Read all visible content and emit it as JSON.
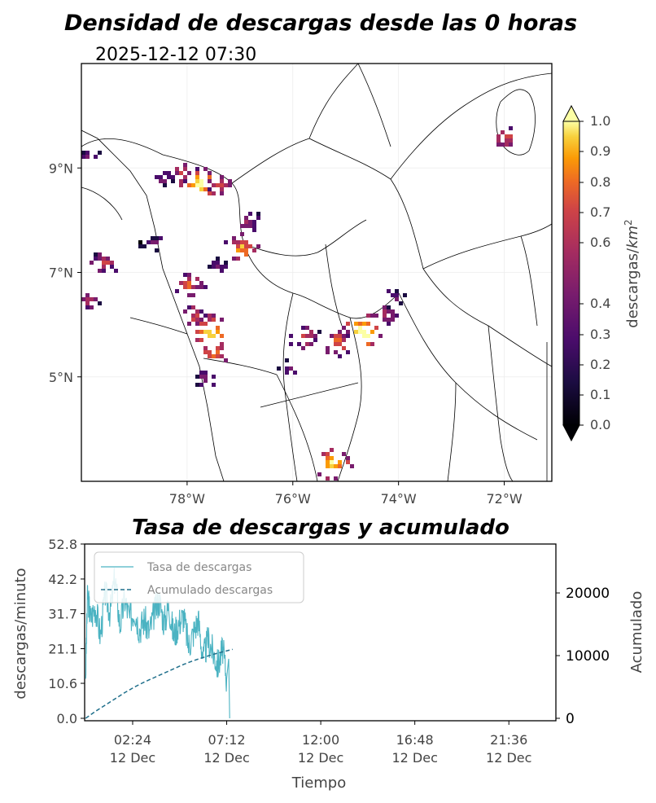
{
  "colors": {
    "rate_line": "#4bb3c2",
    "cumulative_line": "#1f6f8b",
    "border": "#000000",
    "map_bg": "#ffffff"
  },
  "chart_data": [
    {
      "type": "heatmap",
      "title": "Densidad de descargas desde las 0 horas",
      "subtitle": "2025-12-12 07:30",
      "xlim": [
        -80,
        -71.1
      ],
      "ylim": [
        3.0,
        11.0
      ],
      "xticks": [
        -78,
        -76,
        -74,
        -72
      ],
      "xtick_labels": [
        "78°W",
        "76°W",
        "74°W",
        "72°W"
      ],
      "yticks": [
        5,
        7,
        9
      ],
      "ytick_labels": [
        "5°N",
        "7°N",
        "9°N"
      ],
      "grid": true,
      "colorbar": {
        "label": "descargas/km²",
        "label_text": "descargas/",
        "label_italic": "km",
        "label_sup": "2",
        "ticks": [
          0.0,
          0.1,
          0.2,
          0.3,
          0.4,
          0.6,
          0.7,
          0.8,
          0.9,
          1.0
        ],
        "tick_labels": [
          "0.0",
          "0.1",
          "0.2",
          "0.3",
          "0.4",
          "0.6",
          "0.7",
          "0.8",
          "0.9",
          "1.0"
        ],
        "colormap": "inferno",
        "extend": "both"
      },
      "clusters": [
        {
          "lon": -78.5,
          "lat": 8.85,
          "density": 0.35
        },
        {
          "lon": -78.1,
          "lat": 8.95,
          "density": 0.55
        },
        {
          "lon": -77.8,
          "lat": 8.75,
          "density": 0.9
        },
        {
          "lon": -77.4,
          "lat": 8.7,
          "density": 0.6
        },
        {
          "lon": -76.9,
          "lat": 8.0,
          "density": 0.4
        },
        {
          "lon": -77.0,
          "lat": 7.5,
          "density": 0.75
        },
        {
          "lon": -77.4,
          "lat": 7.2,
          "density": 0.3
        },
        {
          "lon": -78.0,
          "lat": 6.8,
          "density": 0.6
        },
        {
          "lon": -77.9,
          "lat": 6.2,
          "density": 0.55
        },
        {
          "lon": -77.6,
          "lat": 5.9,
          "density": 0.95
        },
        {
          "lon": -77.5,
          "lat": 5.5,
          "density": 0.7
        },
        {
          "lon": -77.7,
          "lat": 5.0,
          "density": 0.3
        },
        {
          "lon": -79.9,
          "lat": 6.5,
          "density": 0.45
        },
        {
          "lon": -79.6,
          "lat": 7.2,
          "density": 0.5
        },
        {
          "lon": -78.7,
          "lat": 7.6,
          "density": 0.3
        },
        {
          "lon": -75.8,
          "lat": 5.8,
          "density": 0.5
        },
        {
          "lon": -75.2,
          "lat": 5.7,
          "density": 0.65
        },
        {
          "lon": -74.7,
          "lat": 5.9,
          "density": 1.0
        },
        {
          "lon": -74.3,
          "lat": 6.2,
          "density": 0.45
        },
        {
          "lon": -74.1,
          "lat": 6.6,
          "density": 0.3
        },
        {
          "lon": -75.3,
          "lat": 3.4,
          "density": 0.9
        },
        {
          "lon": -72.0,
          "lat": 9.6,
          "density": 0.55
        },
        {
          "lon": -79.9,
          "lat": 9.3,
          "density": 0.3
        },
        {
          "lon": -76.1,
          "lat": 5.2,
          "density": 0.3
        }
      ]
    },
    {
      "type": "line",
      "title": "Tasa de descargas y acumulado",
      "xlabel": "Tiempo",
      "ylabel": "descargas/minuto",
      "ylabel_right": "Acumulado",
      "x_range_hours": [
        0,
        24
      ],
      "xticks_hours": [
        2.4,
        7.2,
        12.0,
        16.8,
        21.6
      ],
      "xtick_labels": [
        "02:24\n12 Dec",
        "07:12\n12 Dec",
        "12:00\n12 Dec",
        "16:48\n12 Dec",
        "21:36\n12 Dec"
      ],
      "ylim": [
        0,
        52.8
      ],
      "yticks": [
        0.0,
        10.6,
        21.1,
        31.7,
        42.2,
        52.8
      ],
      "ytick_labels": [
        "0.0",
        "10.6",
        "21.1",
        "31.7",
        "42.2",
        "52.8"
      ],
      "ylim_right": [
        0,
        27800
      ],
      "yticks_right": [
        0,
        10000,
        20000
      ],
      "ytick_labels_right": [
        "0",
        "10000",
        "20000"
      ],
      "legend": {
        "position": "top-left",
        "entries": [
          "Tasa de descargas",
          "Acumulado descargas"
        ]
      },
      "series": [
        {
          "name": "Tasa de descargas",
          "style": "solid",
          "x": [
            0.0,
            0.1,
            0.25,
            0.5,
            0.75,
            1.0,
            1.25,
            1.5,
            1.75,
            2.0,
            2.25,
            2.5,
            2.75,
            3.0,
            3.25,
            3.5,
            3.75,
            4.0,
            4.25,
            4.5,
            4.75,
            5.0,
            5.25,
            5.5,
            5.75,
            6.0,
            6.25,
            6.5,
            6.75,
            7.0,
            7.2,
            7.3,
            7.35
          ],
          "y": [
            12,
            38,
            30,
            34,
            25,
            38,
            32,
            43,
            28,
            36,
            30,
            33,
            27,
            30,
            26,
            32,
            36,
            29,
            34,
            25,
            29,
            31,
            22,
            26,
            30,
            18,
            24,
            20,
            16,
            21,
            12,
            18,
            0
          ]
        },
        {
          "name": "Acumulado descargas",
          "style": "dashed",
          "axis": "right",
          "x": [
            0.0,
            0.5,
            1.0,
            1.5,
            2.0,
            2.5,
            3.0,
            3.5,
            4.0,
            4.5,
            5.0,
            5.5,
            6.0,
            6.5,
            7.0,
            7.5
          ],
          "y": [
            0,
            1100,
            2100,
            3100,
            4100,
            5000,
            5800,
            6500,
            7200,
            7900,
            8600,
            9200,
            9700,
            10200,
            10600,
            11000
          ]
        }
      ]
    }
  ]
}
